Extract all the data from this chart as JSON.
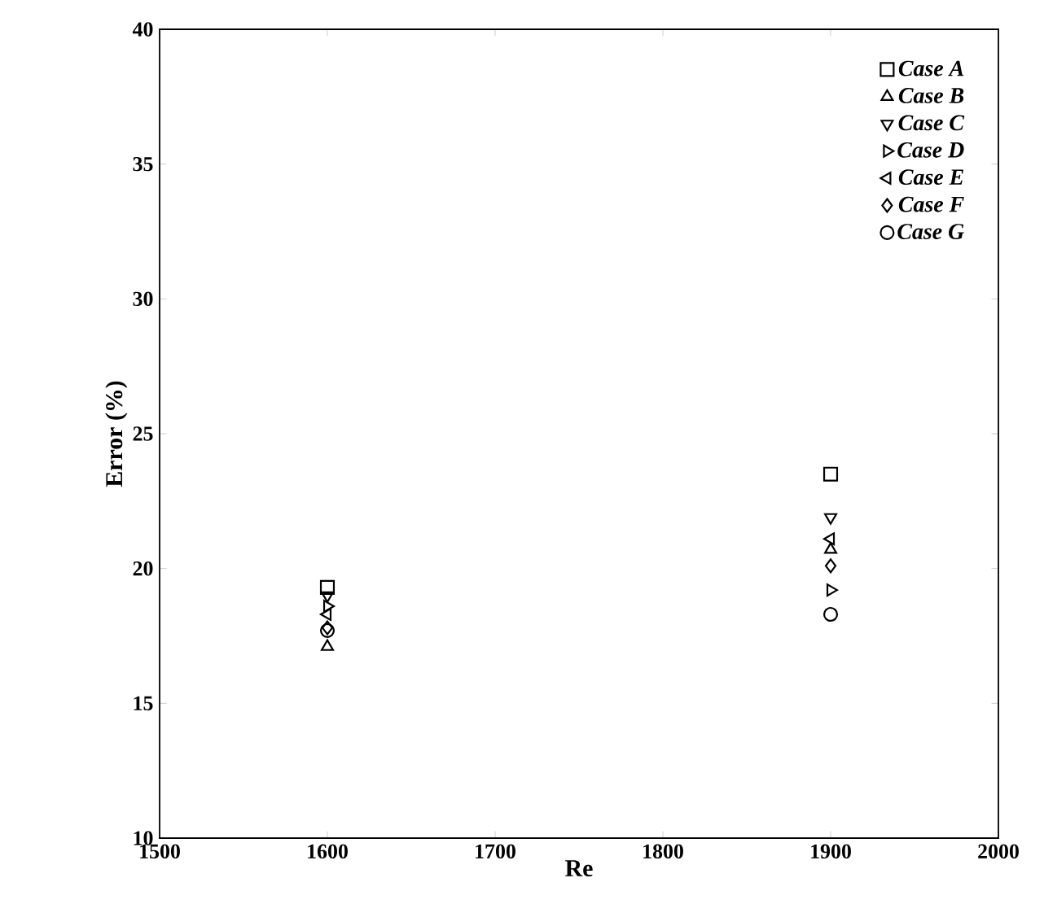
{
  "chart_data": {
    "type": "scatter",
    "xlabel": "Re",
    "ylabel": "Error (%)",
    "xlim": [
      1500,
      2000
    ],
    "xticks": [
      1500,
      1600,
      1700,
      1800,
      1900,
      2000
    ],
    "ylim": [
      10,
      40
    ],
    "yticks": [
      10,
      15,
      20,
      25,
      30,
      35,
      40
    ],
    "x": [
      1600,
      1900
    ],
    "legend": "top right",
    "grid": false,
    "series": [
      {
        "name": "*Case A*",
        "color": "#000000",
        "marker": "square",
        "values": [
          19.3,
          23.5
        ]
      },
      {
        "name": "*Case B*",
        "color": "#000000",
        "marker": "triangle",
        "values": [
          17.1,
          20.7
        ]
      },
      {
        "name": "*Case C*",
        "color": "#000000",
        "marker": "triangle-down",
        "values": [
          19.0,
          21.9
        ]
      },
      {
        "name": "*Case D*",
        "color": "#000000",
        "marker": "triangle-right",
        "values": [
          18.6,
          19.2
        ]
      },
      {
        "name": "*Case E*",
        "color": "#000000",
        "marker": "triangle-left",
        "values": [
          18.3,
          21.1
        ]
      },
      {
        "name": "*Case F*",
        "color": "#000000",
        "marker": "diamond",
        "values": [
          17.8,
          20.1
        ]
      },
      {
        "name": "*Case G*",
        "color": "#000000",
        "marker": "circle",
        "values": [
          17.7,
          18.3
        ]
      }
    ]
  }
}
